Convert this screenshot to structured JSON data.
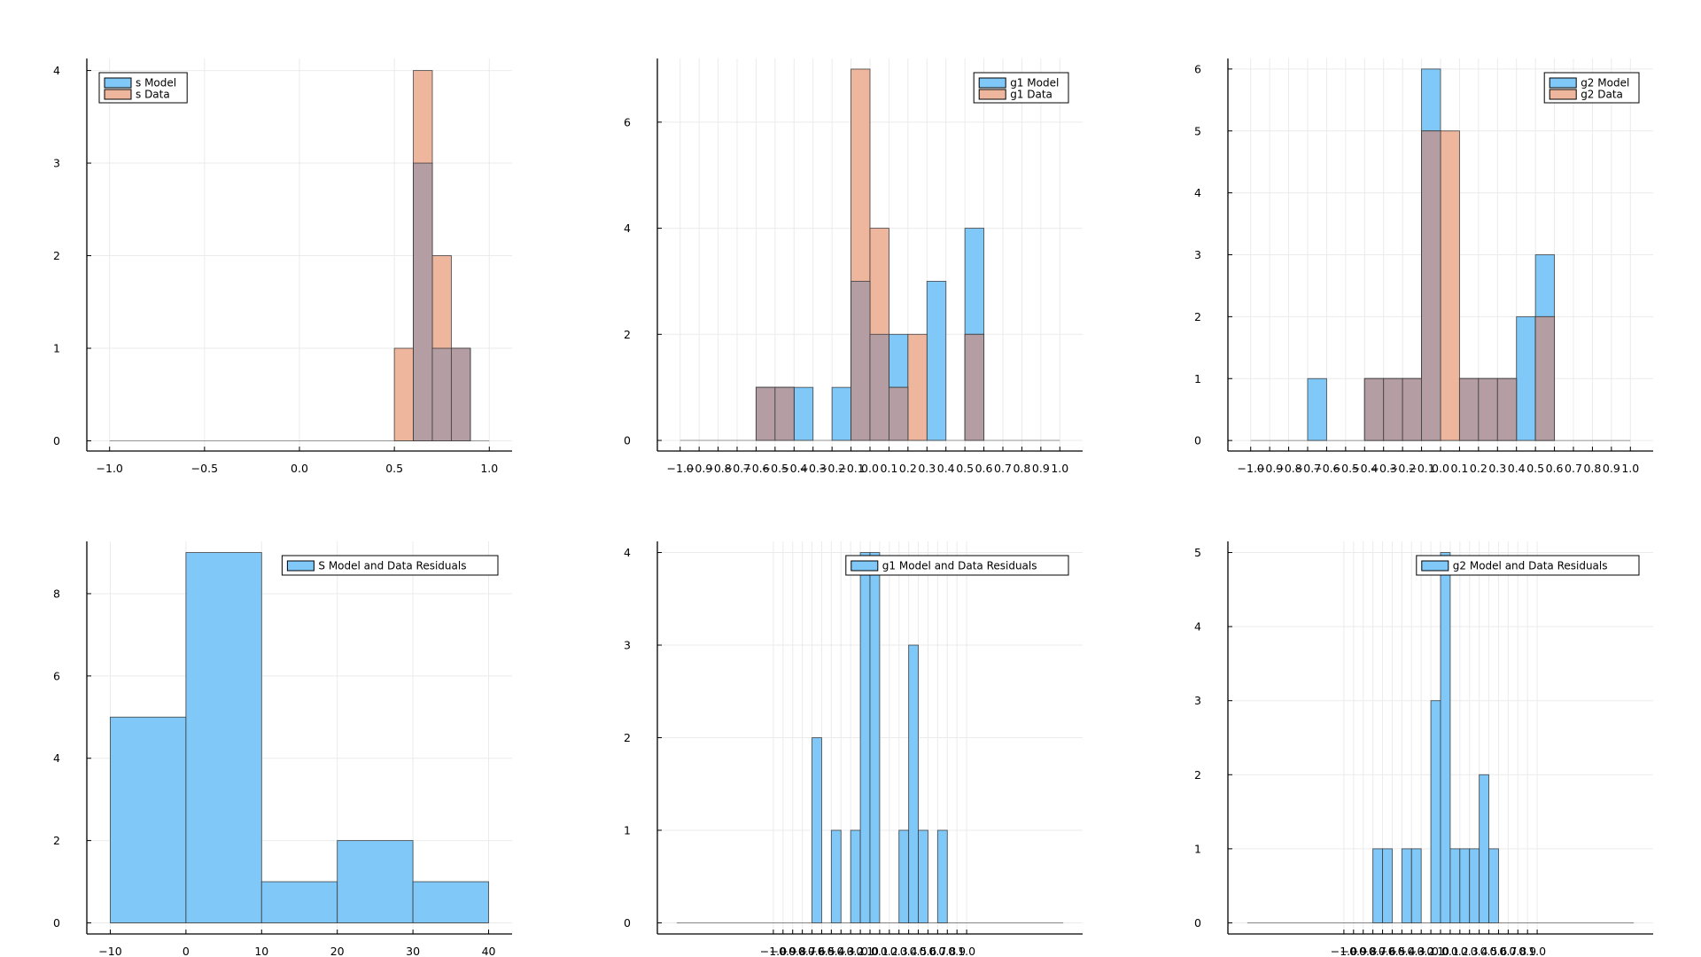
{
  "colors": {
    "model": "#7fc8f8",
    "data": "#efb69e",
    "overlap": "#b49ea3",
    "axis": "#000000",
    "grid": "#ebebeb",
    "background": "#ffffff"
  },
  "chart_data": [
    {
      "type": "bar",
      "title": "",
      "xlim": [
        -1.12,
        1.12
      ],
      "ylim": [
        -0.11,
        4.13
      ],
      "xticks": [
        -1.0,
        -0.5,
        0.0,
        0.5,
        1.0
      ],
      "xtick_labels": [
        "−1.0",
        "−0.5",
        "0.0",
        "0.5",
        "1.0"
      ],
      "yticks": [
        0,
        1,
        2,
        3,
        4
      ],
      "ytick_labels": [
        "0",
        "1",
        "2",
        "3",
        "4"
      ],
      "bin_width": 0.1,
      "baseline_range": [
        -1.0,
        1.0
      ],
      "legend": {
        "position": "top-left",
        "entries": [
          "s Model",
          "s Data"
        ]
      },
      "series": [
        {
          "name": "s Model",
          "role": "model",
          "bin_starts": [
            0.6,
            0.7,
            0.8
          ],
          "values": [
            3,
            1,
            1
          ]
        },
        {
          "name": "s Data",
          "role": "data",
          "bin_starts": [
            0.5,
            0.6,
            0.7,
            0.8
          ],
          "values": [
            1,
            4,
            2,
            1
          ]
        }
      ]
    },
    {
      "type": "bar",
      "title": "",
      "xlim": [
        -1.12,
        1.12
      ],
      "ylim": [
        -0.2,
        7.2
      ],
      "xticks": [
        -1.0,
        -0.9,
        -0.8,
        -0.7,
        -0.6,
        -0.5,
        -0.4,
        -0.3,
        -0.2,
        -0.1,
        0.0,
        0.1,
        0.2,
        0.3,
        0.4,
        0.5,
        0.6,
        0.7,
        0.8,
        0.9,
        1.0
      ],
      "xtick_labels": [
        "−1.0",
        "−0.9",
        "−0.8",
        "−0.7",
        "−0.6",
        "−0.5",
        "−0.4",
        "−0.3",
        "−0.2",
        "−0.1",
        "0.0",
        "0.1",
        "0.2",
        "0.3",
        "0.4",
        "0.5",
        "0.6",
        "0.7",
        "0.8",
        "0.9",
        "1.0"
      ],
      "yticks": [
        0,
        2,
        4,
        6
      ],
      "ytick_labels": [
        "0",
        "2",
        "4",
        "6"
      ],
      "bin_width": 0.1,
      "baseline_range": [
        -1.0,
        1.0
      ],
      "legend": {
        "position": "top-right",
        "entries": [
          "g1 Model",
          "g1 Data"
        ]
      },
      "series": [
        {
          "name": "g1 Model",
          "role": "model",
          "bin_starts": [
            -0.6,
            -0.5,
            -0.4,
            -0.2,
            -0.1,
            0.0,
            0.1,
            0.3,
            0.5
          ],
          "values": [
            1,
            1,
            1,
            1,
            3,
            2,
            2,
            3,
            4
          ]
        },
        {
          "name": "g1 Data",
          "role": "data",
          "bin_starts": [
            -0.6,
            -0.5,
            -0.1,
            0.0,
            0.1,
            0.2,
            0.5
          ],
          "values": [
            1,
            1,
            7,
            4,
            1,
            2,
            2
          ]
        }
      ]
    },
    {
      "type": "bar",
      "title": "",
      "xlim": [
        -1.12,
        1.12
      ],
      "ylim": [
        -0.17,
        6.17
      ],
      "xticks": [
        -1.0,
        -0.9,
        -0.8,
        -0.7,
        -0.6,
        -0.5,
        -0.4,
        -0.3,
        -0.2,
        -0.1,
        0.0,
        0.1,
        0.2,
        0.3,
        0.4,
        0.5,
        0.6,
        0.7,
        0.8,
        0.9,
        1.0
      ],
      "xtick_labels": [
        "−1.0",
        "−0.9",
        "−0.8",
        "−0.7",
        "−0.6",
        "−0.5",
        "−0.4",
        "−0.3",
        "−0.2",
        "−0.1",
        "0.0",
        "0.1",
        "0.2",
        "0.3",
        "0.4",
        "0.5",
        "0.6",
        "0.7",
        "0.8",
        "0.9",
        "1.0"
      ],
      "yticks": [
        0,
        1,
        2,
        3,
        4,
        5,
        6
      ],
      "ytick_labels": [
        "0",
        "1",
        "2",
        "3",
        "4",
        "5",
        "6"
      ],
      "bin_width": 0.1,
      "baseline_range": [
        -1.0,
        1.0
      ],
      "legend": {
        "position": "top-right",
        "entries": [
          "g2 Model",
          "g2 Data"
        ]
      },
      "series": [
        {
          "name": "g2 Model",
          "role": "model",
          "bin_starts": [
            -0.7,
            -0.4,
            -0.3,
            -0.2,
            -0.1,
            0.1,
            0.2,
            0.3,
            0.4,
            0.5
          ],
          "values": [
            1,
            1,
            1,
            1,
            6,
            1,
            1,
            1,
            2,
            3
          ]
        },
        {
          "name": "g2 Data",
          "role": "data",
          "bin_starts": [
            -0.4,
            -0.3,
            -0.2,
            -0.1,
            0.0,
            0.1,
            0.2,
            0.3,
            0.5
          ],
          "values": [
            1,
            1,
            1,
            5,
            5,
            1,
            1,
            1,
            2
          ]
        }
      ]
    },
    {
      "type": "bar",
      "title": "",
      "xlim": [
        -13.1,
        43.1
      ],
      "ylim": [
        -0.27,
        9.27
      ],
      "xticks": [
        -10,
        0,
        10,
        20,
        30,
        40
      ],
      "xtick_labels": [
        "−10",
        "0",
        "10",
        "20",
        "30",
        "40"
      ],
      "yticks": [
        0,
        2,
        4,
        6,
        8
      ],
      "ytick_labels": [
        "0",
        "2",
        "4",
        "6",
        "8"
      ],
      "bin_width": 10,
      "baseline_range": [
        -10,
        40
      ],
      "legend": {
        "position": "top-right",
        "entries": [
          "S Model and Data Residuals"
        ]
      },
      "series": [
        {
          "name": "S Model and Data Residuals",
          "role": "model",
          "bin_starts": [
            -10,
            0,
            10,
            20,
            30
          ],
          "values": [
            5,
            9,
            1,
            2,
            1
          ]
        }
      ]
    },
    {
      "type": "bar",
      "title": "",
      "xlim": [
        -2.2,
        2.2
      ],
      "ylim": [
        -0.12,
        4.12
      ],
      "xticks": [
        -1.0,
        -0.9,
        -0.8,
        -0.7,
        -0.6,
        -0.5,
        -0.4,
        -0.3,
        -0.2,
        -0.1,
        0.0,
        0.1,
        0.2,
        0.3,
        0.4,
        0.5,
        0.6,
        0.7,
        0.8,
        0.9,
        1.0
      ],
      "xtick_labels": [
        "−1.0",
        "−0.9",
        "−0.8",
        "−0.7",
        "−0.6",
        "−0.5",
        "−0.4",
        "−0.3",
        "−0.2",
        "−0.1",
        "0.0",
        "0.1",
        "0.2",
        "0.3",
        "0.4",
        "0.5",
        "0.6",
        "0.7",
        "0.8",
        "0.9",
        "1.0"
      ],
      "yticks": [
        0,
        1,
        2,
        3,
        4
      ],
      "ytick_labels": [
        "0",
        "1",
        "2",
        "3",
        "4"
      ],
      "bin_width": 0.1,
      "baseline_range": [
        -2.0,
        2.0
      ],
      "legend": {
        "position": "top-right",
        "entries": [
          "g1 Model and Data Residuals"
        ]
      },
      "series": [
        {
          "name": "g1 Model and Data Residuals",
          "role": "model",
          "bin_starts": [
            -0.6,
            -0.4,
            -0.2,
            -0.1,
            0.0,
            0.3,
            0.4,
            0.5,
            0.7
          ],
          "values": [
            2,
            1,
            1,
            4,
            4,
            1,
            3,
            1,
            1
          ]
        }
      ]
    },
    {
      "type": "bar",
      "title": "",
      "xlim": [
        -2.2,
        2.2
      ],
      "ylim": [
        -0.15,
        5.15
      ],
      "xticks": [
        -1.0,
        -0.9,
        -0.8,
        -0.7,
        -0.6,
        -0.5,
        -0.4,
        -0.3,
        -0.2,
        -0.1,
        0.0,
        0.1,
        0.2,
        0.3,
        0.4,
        0.5,
        0.6,
        0.7,
        0.8,
        0.9,
        1.0
      ],
      "xtick_labels": [
        "−1.0",
        "−0.9",
        "−0.8",
        "−0.7",
        "−0.6",
        "−0.5",
        "−0.4",
        "−0.3",
        "−0.2",
        "−0.1",
        "0.0",
        "0.1",
        "0.2",
        "0.3",
        "0.4",
        "0.5",
        "0.6",
        "0.7",
        "0.8",
        "0.9",
        "1.0"
      ],
      "yticks": [
        0,
        1,
        2,
        3,
        4,
        5
      ],
      "ytick_labels": [
        "0",
        "1",
        "2",
        "3",
        "4",
        "5"
      ],
      "bin_width": 0.1,
      "baseline_range": [
        -2.0,
        2.0
      ],
      "legend": {
        "position": "top-right",
        "entries": [
          "g2 Model and Data Residuals"
        ]
      },
      "series": [
        {
          "name": "g2 Model and Data Residuals",
          "role": "model",
          "bin_starts": [
            -0.7,
            -0.6,
            -0.4,
            -0.3,
            -0.1,
            0.0,
            0.1,
            0.2,
            0.3,
            0.4,
            0.5
          ],
          "values": [
            1,
            1,
            1,
            1,
            3,
            5,
            1,
            1,
            1,
            2,
            1
          ]
        }
      ]
    }
  ]
}
